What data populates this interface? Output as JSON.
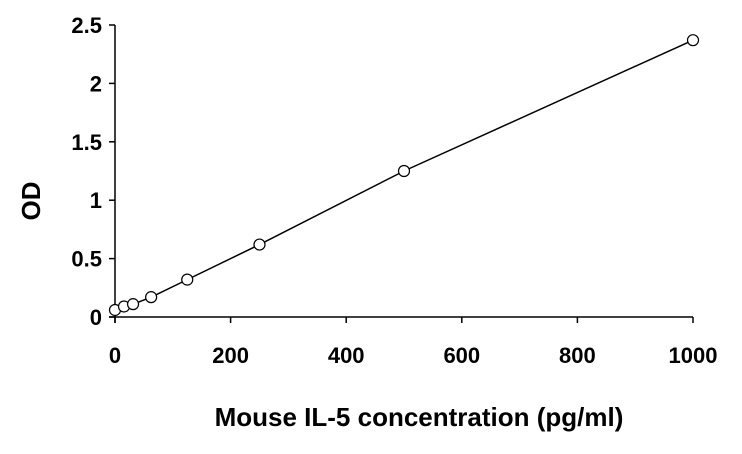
{
  "chart_data": {
    "type": "line",
    "title": "",
    "xlabel": "Mouse IL-5 concentration (pg/ml)",
    "ylabel": "OD",
    "xlim": [
      0,
      1000
    ],
    "ylim": [
      0,
      2.5
    ],
    "x_ticks": [
      "0",
      "200",
      "400",
      "600",
      "800",
      "1000"
    ],
    "y_ticks": [
      "0",
      "0.5",
      "1",
      "1.5",
      "2",
      "2.5"
    ],
    "grid": false,
    "legend": "none",
    "series": [
      {
        "x": [
          0,
          15.6,
          31.25,
          62.5,
          125,
          250,
          500,
          1000
        ],
        "y": [
          0.06,
          0.09,
          0.11,
          0.17,
          0.32,
          0.62,
          1.25,
          2.37
        ],
        "marker": "open-circle",
        "color": "#000000"
      }
    ]
  }
}
